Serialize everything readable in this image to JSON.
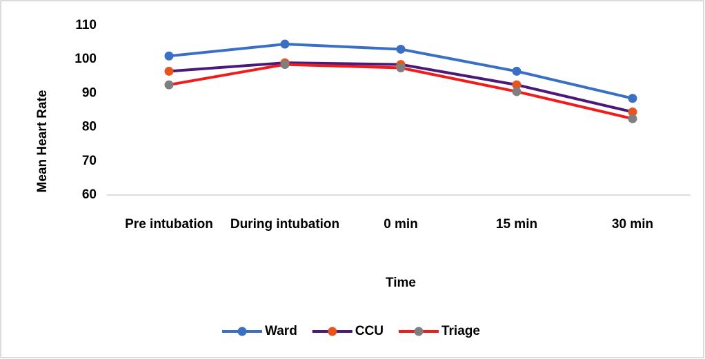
{
  "chart_data": {
    "type": "line",
    "categories": [
      "Pre intubation",
      "During intubation",
      "0 min",
      "15 min",
      "30 min"
    ],
    "series": [
      {
        "name": "Ward",
        "color": "#3a6fc4",
        "marker_color": "#3a6fc4",
        "values": [
          101,
          104.5,
          103,
          96.5,
          88.5
        ]
      },
      {
        "name": "CCU",
        "color": "#4b1a78",
        "marker_color": "#e8541e",
        "values": [
          96.5,
          99,
          98.5,
          92.5,
          84.5
        ]
      },
      {
        "name": "Triage",
        "color": "#f01c1c",
        "marker_color": "#7f7f7f",
        "values": [
          92.5,
          98.5,
          97.5,
          90.5,
          82.5
        ]
      }
    ],
    "xlabel": "Time",
    "ylabel": "Mean Heart Rate",
    "ylim": [
      60,
      110
    ],
    "yticks": [
      60,
      70,
      80,
      90,
      100,
      110
    ],
    "grid": false,
    "legend": "bottom"
  }
}
